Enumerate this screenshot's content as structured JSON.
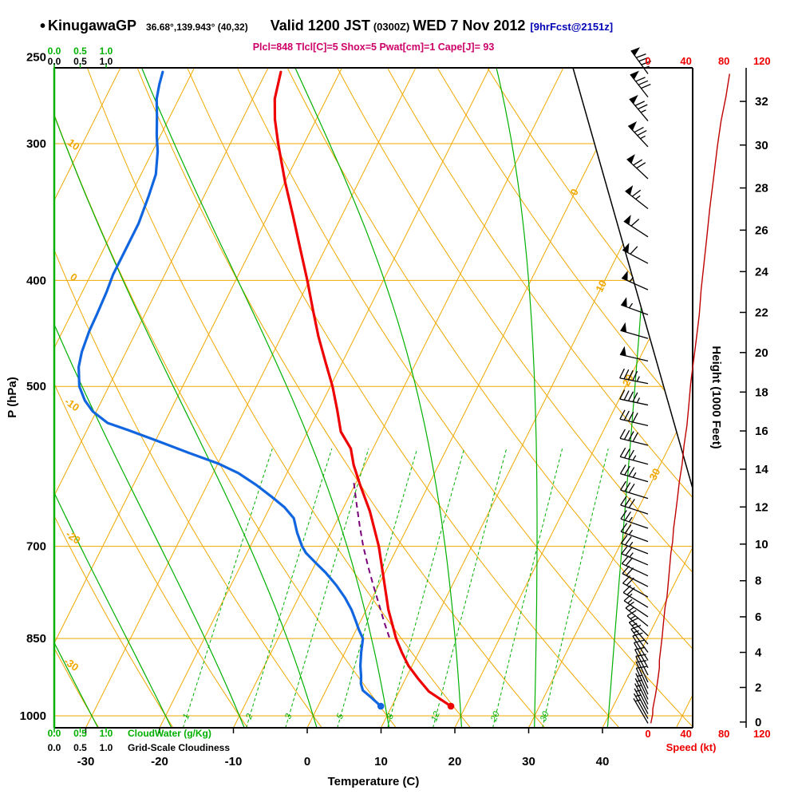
{
  "title": {
    "bullet": "•",
    "station": "KinugawaGP",
    "coords": "36.68°,139.943° (40,32)",
    "valid_pre": "Valid 1200 JST",
    "valid_z": "(0300Z)",
    "valid_date": "WED 7 Nov 2012",
    "fcst": "[9hrFcst@2151z]"
  },
  "params_line": "Plcl=848 Tlcl[C]=5 Shox=5 Pwat[cm]=1 Cape[J]= 93",
  "indices": {
    "plcl_hpa": 848,
    "tlcl_c": 5,
    "showalter_index": 5,
    "pwat_cm": 1,
    "cape_j": 93
  },
  "axes": {
    "pressure": {
      "label": "P (hPa)",
      "ticks": [
        250,
        300,
        400,
        500,
        700,
        850,
        1000
      ]
    },
    "temperature": {
      "label": "Temperature (C)",
      "ticks": [
        -30,
        -20,
        -10,
        0,
        10,
        20,
        30,
        40
      ]
    },
    "height": {
      "label": "Height (1000 Feet)",
      "ticks": [
        0,
        2,
        4,
        6,
        8,
        10,
        12,
        14,
        16,
        18,
        20,
        22,
        24,
        26,
        28,
        30,
        32
      ]
    },
    "speed": {
      "label": "Speed (kt)",
      "ticks": [
        0,
        40,
        80,
        120
      ]
    },
    "cloud": {
      "cloudwater_label": "CloudWater (g/Kg)",
      "cloudiness_label": "Grid-Scale Cloudiness",
      "ticks": [
        "0.0",
        "0.5",
        "1.0"
      ]
    }
  },
  "colors": {
    "grid_orange": "#f0a800",
    "grid_green": "#00b000",
    "temperature_red": "#ee0000",
    "dewpoint_blue": "#1166e0",
    "parcel_purple": "#7a007a",
    "speed_maroon": "#c00000",
    "params_magenta": "#cc0066",
    "scale_red": "#ee0000",
    "fcst_blue": "#0000b4",
    "frame_black": "#000000"
  },
  "chart_data": {
    "type": "skewt_logp_sounding",
    "pressure_range_hpa": [
      256,
      1026
    ],
    "temperature_profile_p_t": [
      [
        980,
        18
      ],
      [
        950,
        14
      ],
      [
        925,
        11.7
      ],
      [
        900,
        9.5
      ],
      [
        875,
        7.7
      ],
      [
        850,
        6
      ],
      [
        800,
        3
      ],
      [
        750,
        0.3
      ],
      [
        700,
        -2.6
      ],
      [
        650,
        -6.2
      ],
      [
        615,
        -9.3
      ],
      [
        590,
        -11.5
      ],
      [
        570,
        -13
      ],
      [
        550,
        -15.5
      ],
      [
        525,
        -17.5
      ],
      [
        500,
        -19.7
      ],
      [
        475,
        -22.3
      ],
      [
        450,
        -25
      ],
      [
        425,
        -27.6
      ],
      [
        400,
        -30.3
      ],
      [
        375,
        -33.3
      ],
      [
        350,
        -36.5
      ],
      [
        325,
        -40
      ],
      [
        300,
        -43.5
      ],
      [
        285,
        -45.6
      ],
      [
        273,
        -47
      ],
      [
        258,
        -48
      ]
    ],
    "dewpoint_profile_p_t": [
      [
        980,
        8.5
      ],
      [
        962,
        6.6
      ],
      [
        948,
        5
      ],
      [
        935,
        4.3
      ],
      [
        920,
        3.8
      ],
      [
        900,
        3
      ],
      [
        875,
        2.2
      ],
      [
        850,
        1.5
      ],
      [
        835,
        0.4
      ],
      [
        820,
        -0.6
      ],
      [
        800,
        -2
      ],
      [
        780,
        -3.7
      ],
      [
        760,
        -5.7
      ],
      [
        740,
        -8
      ],
      [
        725,
        -10
      ],
      [
        710,
        -12
      ],
      [
        700,
        -13
      ],
      [
        680,
        -14.6
      ],
      [
        660,
        -16
      ],
      [
        645,
        -18
      ],
      [
        630,
        -20.6
      ],
      [
        615,
        -23.4
      ],
      [
        600,
        -26.6
      ],
      [
        588,
        -30
      ],
      [
        575,
        -34.7
      ],
      [
        560,
        -40
      ],
      [
        548,
        -44.5
      ],
      [
        540,
        -47.7
      ],
      [
        527,
        -50.5
      ],
      [
        515,
        -52.3
      ],
      [
        500,
        -54
      ],
      [
        480,
        -55.4
      ],
      [
        465,
        -56
      ],
      [
        445,
        -56.4
      ],
      [
        430,
        -56.5
      ],
      [
        410,
        -56.7
      ],
      [
        395,
        -57
      ],
      [
        375,
        -57
      ],
      [
        355,
        -57
      ],
      [
        335,
        -57.5
      ],
      [
        320,
        -58
      ],
      [
        305,
        -59.3
      ],
      [
        295,
        -60.5
      ],
      [
        283,
        -61.8
      ],
      [
        273,
        -63
      ],
      [
        265,
        -63.6
      ],
      [
        258,
        -64
      ]
    ],
    "parcel_path_p_t": [
      [
        848,
        5
      ],
      [
        820,
        3.2
      ],
      [
        790,
        1.3
      ],
      [
        760,
        -0.7
      ],
      [
        730,
        -2.7
      ],
      [
        700,
        -4.7
      ],
      [
        670,
        -6.6
      ],
      [
        640,
        -8.5
      ],
      [
        612,
        -10.3
      ]
    ],
    "wind_barbs_p_dir_kt": [
      [
        1016,
        330,
        3
      ],
      [
        1006,
        331,
        4
      ],
      [
        996,
        332,
        5
      ],
      [
        986,
        333,
        5
      ],
      [
        976,
        334,
        6
      ],
      [
        966,
        335,
        7
      ],
      [
        956,
        336,
        8
      ],
      [
        944,
        336,
        9
      ],
      [
        932,
        335,
        10
      ],
      [
        918,
        333,
        11
      ],
      [
        904,
        331,
        12
      ],
      [
        890,
        328,
        12
      ],
      [
        875,
        324,
        13
      ],
      [
        860,
        319,
        14
      ],
      [
        845,
        314,
        15
      ],
      [
        828,
        309,
        16
      ],
      [
        812,
        304,
        17
      ],
      [
        796,
        301,
        18
      ],
      [
        779,
        299,
        20
      ],
      [
        762,
        297,
        21
      ],
      [
        745,
        295,
        22
      ],
      [
        728,
        293,
        23
      ],
      [
        711,
        291,
        24
      ],
      [
        693,
        290,
        26
      ],
      [
        674,
        289,
        27
      ],
      [
        654,
        288,
        29
      ],
      [
        633,
        287,
        31
      ],
      [
        611,
        286,
        33
      ],
      [
        589,
        285,
        36
      ],
      [
        566,
        284,
        38
      ],
      [
        543,
        283,
        41
      ],
      [
        520,
        282,
        43
      ],
      [
        497,
        281,
        45
      ],
      [
        474,
        283,
        48
      ],
      [
        452,
        286,
        51
      ],
      [
        430,
        290,
        54
      ],
      [
        408,
        294,
        56
      ],
      [
        386,
        298,
        59
      ],
      [
        365,
        303,
        62
      ],
      [
        344,
        308,
        65
      ],
      [
        323,
        313,
        69
      ],
      [
        302,
        317,
        73
      ],
      [
        286,
        320,
        77
      ],
      [
        272,
        322,
        82
      ],
      [
        259,
        324,
        86
      ]
    ],
    "grid": {
      "pressure_lines_hpa": [
        300,
        400,
        500,
        700,
        850,
        1000
      ],
      "isotherms_c": [
        -120,
        -110,
        -100,
        -90,
        -80,
        -70,
        -60,
        -50,
        -40,
        -30,
        -20,
        -10,
        0,
        10,
        20,
        30,
        40,
        50
      ],
      "dry_adiabats_c": [
        -40,
        -30,
        -20,
        -10,
        0,
        10,
        20,
        30,
        40,
        50,
        60,
        70,
        80,
        90,
        100
      ],
      "moist_adiabats_c": [
        -30,
        -20,
        -10,
        0,
        10,
        20,
        30,
        40
      ],
      "mixing_ratio_gkg": [
        1,
        2,
        3,
        5,
        8,
        12,
        20,
        30
      ],
      "isotherm_label_values_c": [
        0,
        10,
        20,
        30
      ],
      "dry_adiabat_label_values_c": [
        10,
        0,
        -10,
        -20,
        -30
      ]
    }
  }
}
